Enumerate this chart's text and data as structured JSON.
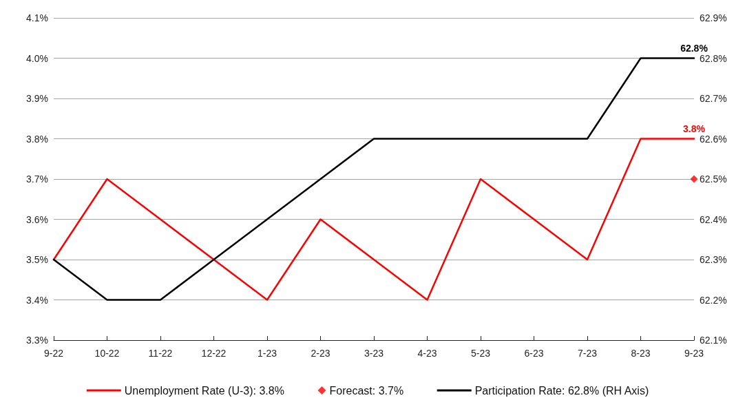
{
  "chart_data": {
    "type": "line",
    "categories": [
      "9-22",
      "10-22",
      "11-22",
      "12-22",
      "1-23",
      "2-23",
      "3-23",
      "4-23",
      "5-23",
      "6-23",
      "7-23",
      "8-23",
      "9-23"
    ],
    "series": [
      {
        "name": "Unemployment Rate (U-3): 3.8%",
        "color": "#ff0000",
        "values": [
          3.5,
          3.7,
          3.6,
          3.5,
          3.4,
          3.6,
          3.5,
          3.4,
          3.7,
          3.6,
          3.5,
          3.8,
          3.8
        ],
        "value_labels": [
          null,
          null,
          null,
          null,
          null,
          null,
          null,
          null,
          null,
          null,
          null,
          null,
          "3.8%"
        ]
      },
      {
        "name": "Forecast: 3.7%",
        "type": "scatter",
        "marker": "diamond",
        "color": "#ff0000",
        "x": [
          "9-23"
        ],
        "values": [
          3.7
        ]
      },
      {
        "name": "Participation Rate: 62.8% (RH Axis)",
        "axis": "y2",
        "color": "#000000",
        "values": [
          62.3,
          62.2,
          62.2,
          62.3,
          62.4,
          62.5,
          62.6,
          62.6,
          62.6,
          62.6,
          62.6,
          62.8,
          62.8
        ],
        "value_labels": [
          null,
          null,
          null,
          null,
          null,
          null,
          null,
          null,
          null,
          null,
          null,
          null,
          "62.8%"
        ]
      }
    ],
    "ylim": [
      3.3,
      4.1
    ],
    "yticks": [
      {
        "value": 3.3,
        "label": "3.3%"
      },
      {
        "value": 3.4,
        "label": "3.4%"
      },
      {
        "value": 3.5,
        "label": "3.5%"
      },
      {
        "value": 3.6,
        "label": "3.6%"
      },
      {
        "value": 3.7,
        "label": "3.7%"
      },
      {
        "value": 3.8,
        "label": "3.8%"
      },
      {
        "value": 3.9,
        "label": "3.9%"
      },
      {
        "value": 4.0,
        "label": "4.0%"
      },
      {
        "value": 4.1,
        "label": "4.1%"
      }
    ],
    "y2lim": [
      62.1,
      62.9
    ],
    "y2ticks": [
      {
        "value": 62.1,
        "label": "62.1%"
      },
      {
        "value": 62.2,
        "label": "62.2%"
      },
      {
        "value": 62.3,
        "label": "62.3%"
      },
      {
        "value": 62.4,
        "label": "62.4%"
      },
      {
        "value": 62.5,
        "label": "62.5%"
      },
      {
        "value": 62.6,
        "label": "62.6%"
      },
      {
        "value": 62.7,
        "label": "62.7%"
      },
      {
        "value": 62.8,
        "label": "62.8%"
      },
      {
        "value": 62.9,
        "label": "62.9%"
      }
    ],
    "grid": "y",
    "legend": "bottom",
    "marker": "none",
    "line_style": "solid"
  }
}
